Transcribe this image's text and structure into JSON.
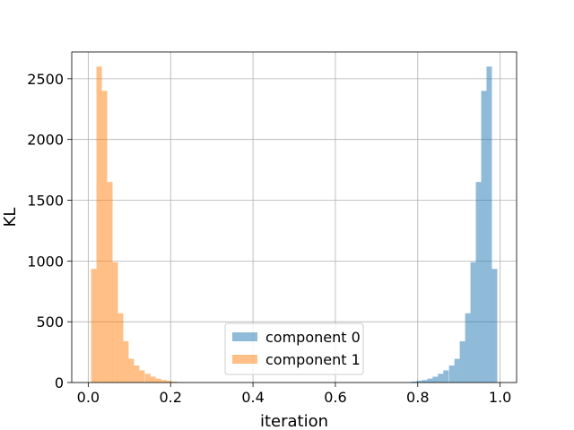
{
  "chart_data": {
    "type": "histogram",
    "title": "",
    "xlabel": "iteration",
    "ylabel": "KL",
    "xlim": [
      -0.04,
      1.04
    ],
    "ylim": [
      0,
      2720
    ],
    "xticks": [
      "0.0",
      "0.2",
      "0.4",
      "0.6",
      "0.8",
      "1.0"
    ],
    "yticks": [
      "0",
      "500",
      "1000",
      "1500",
      "2000",
      "2500"
    ],
    "grid": true,
    "legend_position": "lower center",
    "bin_width": 0.0131,
    "series": [
      {
        "name": "component 0",
        "color": "#1f77b4",
        "opacity": 0.5,
        "bin_starts": [
          0.784,
          0.797,
          0.81,
          0.823,
          0.836,
          0.849,
          0.862,
          0.876,
          0.889,
          0.902,
          0.915,
          0.928,
          0.941,
          0.954,
          0.967,
          0.98
        ],
        "counts": [
          8,
          15,
          20,
          32,
          48,
          72,
          100,
          140,
          195,
          340,
          570,
          990,
          1650,
          2400,
          2600,
          935
        ]
      },
      {
        "name": "component 1",
        "color": "#ff7f0e",
        "opacity": 0.5,
        "bin_starts": [
          0.007,
          0.02,
          0.033,
          0.046,
          0.059,
          0.072,
          0.085,
          0.098,
          0.111,
          0.124,
          0.138,
          0.151,
          0.164,
          0.177,
          0.19,
          0.203
        ],
        "counts": [
          935,
          2600,
          2400,
          1650,
          990,
          570,
          340,
          195,
          140,
          100,
          72,
          48,
          32,
          20,
          15,
          8
        ]
      }
    ]
  }
}
